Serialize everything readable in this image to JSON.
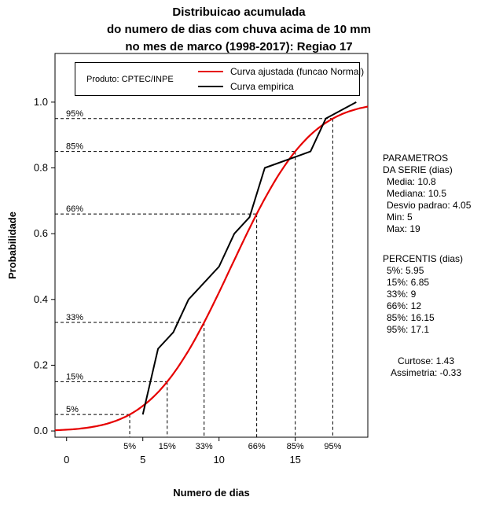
{
  "title": {
    "line1": "Distribuicao acumulada",
    "line2": "do numero de dias com chuva acima de 10 mm",
    "line3": "no mes de marco (1998-2017): Regiao 17"
  },
  "legend": {
    "product": "Produto: CPTEC/INPE"
  },
  "stats_panel": {
    "params_title1": "PARAMETROS",
    "params_title2": "DA SERIE (dias)",
    "params": [
      "Media: 10.8",
      "Mediana: 10.5",
      "Desvio padrao: 4.05",
      "Min: 5",
      "Max: 19"
    ],
    "percentis_title": "PERCENTIS (dias)",
    "percentis": [
      "5%: 5.95",
      "15%: 6.85",
      "33%: 9",
      "66%: 12",
      "85%: 16.15",
      "95%: 17.1"
    ],
    "curtose": "Curtose: 1.43",
    "assimetria": "Assimetria: -0.33"
  },
  "chart_data": {
    "type": "line",
    "title": "Distribuicao acumulada do numero de dias com chuva acima de 10 mm no mes de marco (1998-2017): Regiao 17",
    "xlabel": "Numero de dias",
    "ylabel": "Probabilidade",
    "xlim": [
      -0.76,
      19.76
    ],
    "ylim": [
      -0.019,
      1.148
    ],
    "x_ticks": [
      0,
      5,
      10,
      15
    ],
    "y_ticks": [
      "0.0",
      "0.2",
      "0.4",
      "0.6",
      "0.8",
      "1.0"
    ],
    "grid": false,
    "legend_position": "top-inside",
    "series": [
      {
        "name": "Curva ajustada (funcao Normal)",
        "color": "#e60000",
        "model": "normal_cdf",
        "mean": 10.8,
        "sd": 4.05
      },
      {
        "name": "Curva empirica",
        "color": "#000000",
        "points": [
          [
            5,
            0.05
          ],
          [
            6,
            0.25
          ],
          [
            7,
            0.3
          ],
          [
            8,
            0.4
          ],
          [
            9,
            0.45
          ],
          [
            10,
            0.5
          ],
          [
            11,
            0.6
          ],
          [
            12,
            0.65
          ],
          [
            13,
            0.8
          ],
          [
            16,
            0.85
          ],
          [
            17,
            0.95
          ],
          [
            19,
            1.0
          ]
        ]
      }
    ],
    "percentile_markers": [
      {
        "label": "5%",
        "p": 0.05,
        "x": 4.14
      },
      {
        "label": "15%",
        "p": 0.15,
        "x": 6.6
      },
      {
        "label": "33%",
        "p": 0.33,
        "x": 9.02
      },
      {
        "label": "66%",
        "p": 0.66,
        "x": 12.47
      },
      {
        "label": "85%",
        "p": 0.85,
        "x": 15.0
      },
      {
        "label": "95%",
        "p": 0.95,
        "x": 17.46
      }
    ]
  }
}
